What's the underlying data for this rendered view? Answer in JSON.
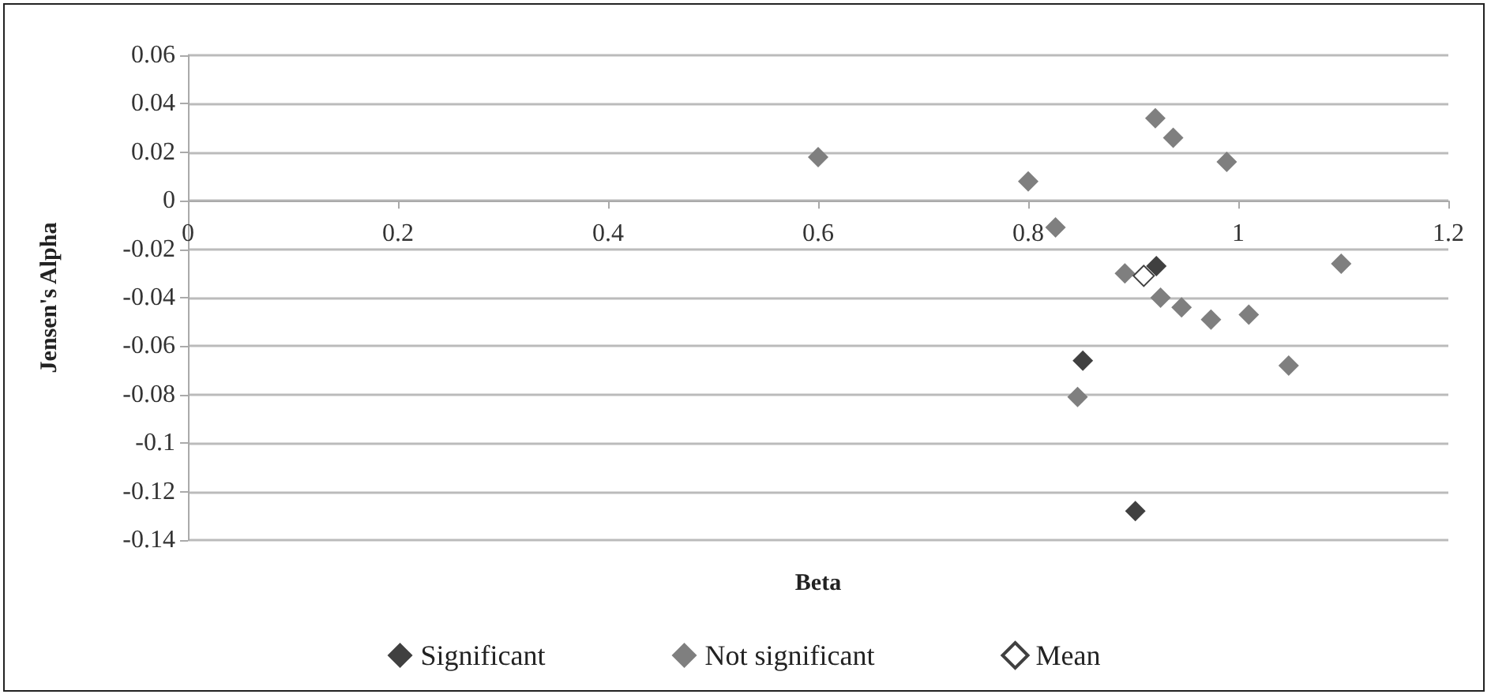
{
  "chart_data": {
    "type": "scatter",
    "xlabel": "Beta",
    "ylabel": "Jensen's Alpha",
    "series": [
      {
        "name": "Significant",
        "color": "#404040",
        "x": [
          0.922,
          0.852,
          0.902
        ],
        "values": [
          -0.027,
          -0.066,
          -0.128
        ]
      },
      {
        "name": "Not significant",
        "color": "#7f7f7f",
        "x": [
          0.6,
          0.8,
          0.826,
          0.921,
          0.938,
          0.989,
          1.098,
          0.892,
          0.926,
          0.946,
          0.974,
          1.01,
          1.048,
          0.847
        ],
        "values": [
          0.018,
          0.008,
          -0.011,
          0.034,
          0.026,
          0.016,
          -0.026,
          -0.03,
          -0.04,
          -0.044,
          -0.049,
          -0.047,
          -0.068,
          -0.081
        ]
      },
      {
        "name": "Mean",
        "color": "#ffffff",
        "x": [
          0.91
        ],
        "values": [
          -0.031
        ]
      }
    ],
    "xlim": [
      0,
      1.2
    ],
    "xticks": [
      0,
      0.2,
      0.4,
      0.6,
      0.8,
      1,
      1.2
    ],
    "ylim": [
      -0.14,
      0.06
    ],
    "yticks": [
      -0.14,
      -0.12,
      -0.1,
      -0.08,
      -0.06,
      -0.04,
      -0.02,
      0,
      0.02,
      0.04,
      0.06
    ],
    "grid": "y",
    "legend": "bottom",
    "marker": "diamond"
  }
}
